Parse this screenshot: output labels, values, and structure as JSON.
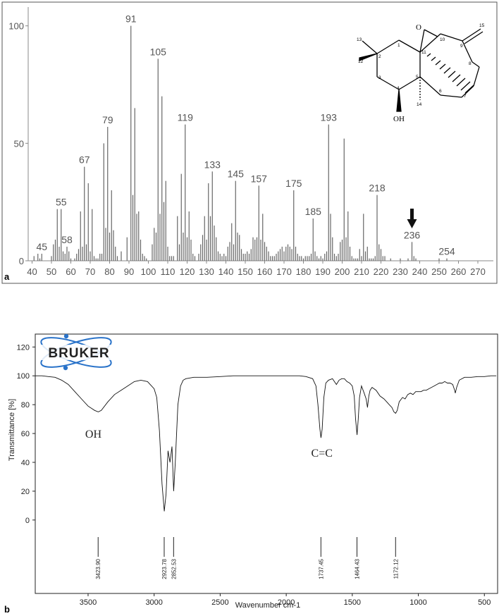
{
  "panel_a": {
    "label": "a"
  },
  "panel_b": {
    "label": "b"
  },
  "structure": {
    "atoms": [
      "O",
      "OH",
      "1",
      "2",
      "3",
      "4",
      "5",
      "6",
      "7",
      "8",
      "9",
      "10",
      "11",
      "12",
      "13",
      "14",
      "15"
    ]
  },
  "bruker_logo": {
    "text": "BRUKER"
  },
  "ir_annotations": [
    {
      "text": "OH",
      "x": 3460,
      "y": 57
    },
    {
      "text": "C=C",
      "x": 1730,
      "y": 44
    }
  ],
  "chart_data": [
    {
      "type": "bar",
      "title": "",
      "xlabel": "",
      "ylabel": "",
      "xlim": [
        38,
        278
      ],
      "ylim": [
        0,
        108
      ],
      "xticks": [
        40,
        50,
        60,
        70,
        80,
        90,
        100,
        110,
        120,
        130,
        140,
        150,
        160,
        170,
        180,
        190,
        200,
        210,
        220,
        230,
        240,
        250,
        260,
        270
      ],
      "yticks": [
        0,
        50,
        100
      ],
      "grid": false,
      "annotation_arrow_at": 236,
      "labeled_peaks": [
        {
          "x": 45,
          "y": 3,
          "label": "45"
        },
        {
          "x": 55,
          "y": 22,
          "label": "55"
        },
        {
          "x": 58,
          "y": 6,
          "label": "58"
        },
        {
          "x": 67,
          "y": 40,
          "label": "67"
        },
        {
          "x": 79,
          "y": 57,
          "label": "79"
        },
        {
          "x": 91,
          "y": 100,
          "label": "91"
        },
        {
          "x": 105,
          "y": 86,
          "label": "105"
        },
        {
          "x": 119,
          "y": 58,
          "label": "119"
        },
        {
          "x": 133,
          "y": 38,
          "label": "133"
        },
        {
          "x": 145,
          "y": 34,
          "label": "145"
        },
        {
          "x": 157,
          "y": 32,
          "label": "157"
        },
        {
          "x": 175,
          "y": 30,
          "label": "175"
        },
        {
          "x": 185,
          "y": 18,
          "label": "185"
        },
        {
          "x": 193,
          "y": 58,
          "label": "193"
        },
        {
          "x": 218,
          "y": 28,
          "label": "218"
        },
        {
          "x": 236,
          "y": 8,
          "label": "236"
        },
        {
          "x": 254,
          "y": 1,
          "label": "254"
        }
      ],
      "peaks": [
        [
          41,
          2
        ],
        [
          43,
          3
        ],
        [
          44,
          1
        ],
        [
          50,
          2
        ],
        [
          51,
          7
        ],
        [
          52,
          9
        ],
        [
          53,
          22
        ],
        [
          54,
          6
        ],
        [
          56,
          4
        ],
        [
          57,
          3
        ],
        [
          59,
          4
        ],
        [
          60,
          1
        ],
        [
          62,
          1
        ],
        [
          63,
          3
        ],
        [
          64,
          5
        ],
        [
          65,
          21
        ],
        [
          66,
          6
        ],
        [
          68,
          7
        ],
        [
          69,
          33
        ],
        [
          70,
          4
        ],
        [
          71,
          22
        ],
        [
          72,
          2
        ],
        [
          73,
          1
        ],
        [
          74,
          1
        ],
        [
          75,
          3
        ],
        [
          76,
          3
        ],
        [
          77,
          50
        ],
        [
          78,
          14
        ],
        [
          80,
          12
        ],
        [
          81,
          30
        ],
        [
          82,
          13
        ],
        [
          83,
          6
        ],
        [
          84,
          2
        ],
        [
          86,
          4
        ],
        [
          89,
          10
        ],
        [
          92,
          28
        ],
        [
          93,
          65
        ],
        [
          94,
          20
        ],
        [
          95,
          21
        ],
        [
          96,
          9
        ],
        [
          97,
          3
        ],
        [
          98,
          2
        ],
        [
          99,
          1
        ],
        [
          102,
          7
        ],
        [
          103,
          14
        ],
        [
          104,
          12
        ],
        [
          106,
          20
        ],
        [
          107,
          70
        ],
        [
          108,
          25
        ],
        [
          109,
          34
        ],
        [
          110,
          6
        ],
        [
          111,
          2
        ],
        [
          112,
          2
        ],
        [
          113,
          2
        ],
        [
          115,
          19
        ],
        [
          116,
          7
        ],
        [
          117,
          37
        ],
        [
          118,
          12
        ],
        [
          120,
          10
        ],
        [
          121,
          21
        ],
        [
          122,
          9
        ],
        [
          123,
          3
        ],
        [
          124,
          2
        ],
        [
          126,
          3
        ],
        [
          127,
          7
        ],
        [
          128,
          11
        ],
        [
          129,
          19
        ],
        [
          130,
          9
        ],
        [
          131,
          33
        ],
        [
          132,
          19
        ],
        [
          134,
          15
        ],
        [
          135,
          10
        ],
        [
          136,
          4
        ],
        [
          137,
          3
        ],
        [
          138,
          2
        ],
        [
          139,
          3
        ],
        [
          140,
          2
        ],
        [
          141,
          6
        ],
        [
          142,
          8
        ],
        [
          143,
          16
        ],
        [
          144,
          7
        ],
        [
          146,
          12
        ],
        [
          147,
          11
        ],
        [
          148,
          5
        ],
        [
          149,
          3
        ],
        [
          150,
          3
        ],
        [
          151,
          4
        ],
        [
          152,
          3
        ],
        [
          153,
          5
        ],
        [
          154,
          10
        ],
        [
          155,
          9
        ],
        [
          156,
          10
        ],
        [
          158,
          9
        ],
        [
          159,
          20
        ],
        [
          160,
          8
        ],
        [
          161,
          6
        ],
        [
          162,
          4
        ],
        [
          163,
          2
        ],
        [
          164,
          2
        ],
        [
          165,
          2
        ],
        [
          166,
          3
        ],
        [
          167,
          4
        ],
        [
          168,
          5
        ],
        [
          169,
          6
        ],
        [
          170,
          4
        ],
        [
          171,
          6
        ],
        [
          172,
          7
        ],
        [
          173,
          6
        ],
        [
          174,
          5
        ],
        [
          176,
          6
        ],
        [
          177,
          3
        ],
        [
          178,
          2
        ],
        [
          179,
          2
        ],
        [
          180,
          1
        ],
        [
          181,
          2
        ],
        [
          182,
          2
        ],
        [
          183,
          2
        ],
        [
          184,
          3
        ],
        [
          186,
          4
        ],
        [
          187,
          2
        ],
        [
          188,
          1
        ],
        [
          189,
          2
        ],
        [
          190,
          1
        ],
        [
          191,
          3
        ],
        [
          192,
          4
        ],
        [
          194,
          20
        ],
        [
          195,
          10
        ],
        [
          196,
          3
        ],
        [
          197,
          2
        ],
        [
          198,
          3
        ],
        [
          199,
          8
        ],
        [
          200,
          9
        ],
        [
          201,
          52
        ],
        [
          202,
          10
        ],
        [
          203,
          21
        ],
        [
          204,
          6
        ],
        [
          205,
          2
        ],
        [
          206,
          1
        ],
        [
          207,
          1
        ],
        [
          208,
          1
        ],
        [
          209,
          5
        ],
        [
          210,
          2
        ],
        [
          211,
          20
        ],
        [
          212,
          4
        ],
        [
          213,
          6
        ],
        [
          214,
          1
        ],
        [
          215,
          1
        ],
        [
          216,
          1
        ],
        [
          217,
          2
        ],
        [
          219,
          7
        ],
        [
          220,
          5
        ],
        [
          221,
          2
        ],
        [
          222,
          2
        ],
        [
          225,
          1
        ],
        [
          230,
          1
        ],
        [
          234,
          1
        ],
        [
          237,
          2
        ],
        [
          238,
          1
        ],
        [
          250,
          1
        ]
      ]
    },
    {
      "type": "line",
      "title": "",
      "xlabel": "Wavenumber cm-1",
      "ylabel": "Transmittance [%]",
      "xlim": [
        3900,
        400
      ],
      "ylim": [
        -4,
        127
      ],
      "xticks": [
        3500,
        3000,
        2500,
        2000,
        1500,
        1000,
        500
      ],
      "yticks": [
        0,
        20,
        40,
        60,
        80,
        100,
        120
      ],
      "grid": false,
      "peak_labels": [
        "3423.90",
        "2923.78",
        "2852.53",
        "1737.45",
        "1464.43",
        "1172.12"
      ],
      "peak_positions": [
        3423.9,
        2923.78,
        2852.53,
        1737.45,
        1464.43,
        1172.12
      ],
      "x": [
        3900,
        3850,
        3800,
        3750,
        3700,
        3650,
        3600,
        3550,
        3500,
        3450,
        3423,
        3400,
        3350,
        3300,
        3250,
        3200,
        3150,
        3100,
        3050,
        3000,
        2980,
        2960,
        2940,
        2923,
        2910,
        2895,
        2880,
        2865,
        2852,
        2840,
        2820,
        2800,
        2780,
        2760,
        2700,
        2600,
        2500,
        2400,
        2300,
        2200,
        2100,
        2000,
        1900,
        1850,
        1800,
        1775,
        1760,
        1745,
        1737,
        1728,
        1715,
        1700,
        1680,
        1650,
        1620,
        1600,
        1580,
        1560,
        1540,
        1520,
        1500,
        1485,
        1475,
        1464,
        1455,
        1445,
        1430,
        1410,
        1395,
        1385,
        1375,
        1365,
        1350,
        1320,
        1290,
        1260,
        1240,
        1220,
        1200,
        1185,
        1172,
        1160,
        1145,
        1120,
        1100,
        1080,
        1060,
        1040,
        1020,
        1000,
        980,
        960,
        940,
        920,
        900,
        880,
        860,
        840,
        820,
        800,
        780,
        760,
        740,
        725,
        720,
        710,
        690,
        650,
        600,
        550,
        500,
        450,
        410
      ],
      "y": [
        100,
        100,
        99.5,
        99,
        97,
        94,
        89,
        84,
        79,
        76,
        75,
        76,
        82,
        87,
        90,
        93,
        96,
        97,
        96,
        91,
        85,
        62,
        25,
        6,
        18,
        48,
        40,
        51,
        20,
        40,
        80,
        93,
        97,
        98,
        99,
        99,
        99.5,
        100,
        100,
        100,
        100,
        100,
        100,
        99.5,
        98,
        93,
        80,
        63,
        57,
        63,
        85,
        95,
        97,
        98,
        94,
        97,
        98,
        98,
        96,
        95,
        93,
        86,
        70,
        59,
        70,
        85,
        93,
        88,
        84,
        78,
        86,
        90,
        92,
        90,
        86,
        84,
        82,
        80,
        78,
        75,
        74,
        76,
        82,
        85,
        84,
        87,
        88,
        87,
        89,
        89,
        89,
        90,
        90,
        91,
        92,
        93,
        94,
        95,
        95,
        96,
        95,
        95,
        94,
        90,
        88,
        92,
        97,
        99,
        99,
        99.5,
        99.5,
        100,
        100
      ]
    }
  ]
}
